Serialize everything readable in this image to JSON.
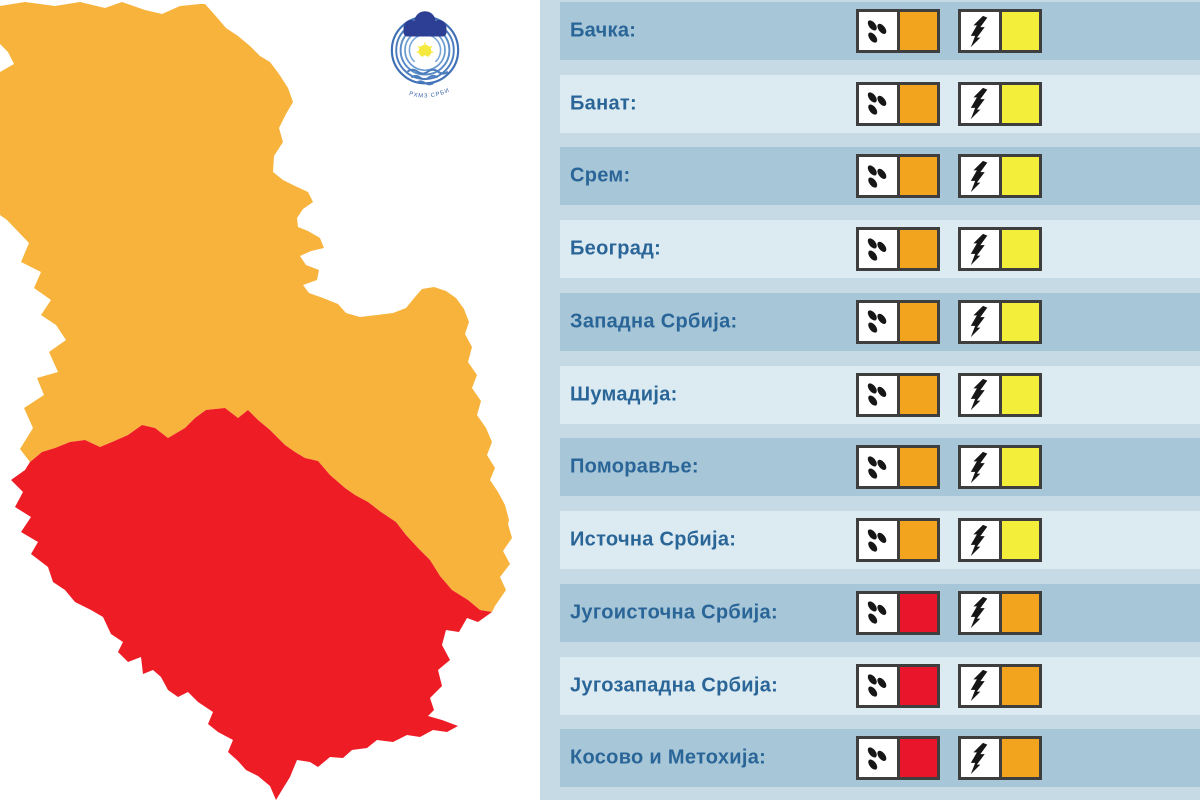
{
  "map": {
    "title": "Serbia warning map",
    "colors": {
      "north_region": "#f8b33c",
      "south_region": "#ee1c25"
    },
    "logo": {
      "text": "РХМЗ СРБИЈЕ",
      "colors": {
        "navy": "#2c3f94",
        "arc_blue": "#4c7ebe",
        "sun_yellow": "#f5e93d",
        "text_blue": "#3b63a8"
      }
    }
  },
  "panel": {
    "background": "#c5dae5",
    "row_dark": "#a7c6d7",
    "row_light": "#dcebf2",
    "label_color": "#2a6598",
    "severity_colors": {
      "yellow": "#f2ee39",
      "orange": "#f2a41f",
      "red": "#e9152b"
    },
    "rows": [
      {
        "label": "Бачка:",
        "warnings": [
          {
            "type": "rain",
            "level": "orange"
          },
          {
            "type": "thunderstorm",
            "level": "yellow"
          }
        ]
      },
      {
        "label": "Банат:",
        "warnings": [
          {
            "type": "rain",
            "level": "orange"
          },
          {
            "type": "thunderstorm",
            "level": "yellow"
          }
        ]
      },
      {
        "label": "Срем:",
        "warnings": [
          {
            "type": "rain",
            "level": "orange"
          },
          {
            "type": "thunderstorm",
            "level": "yellow"
          }
        ]
      },
      {
        "label": "Београд:",
        "warnings": [
          {
            "type": "rain",
            "level": "orange"
          },
          {
            "type": "thunderstorm",
            "level": "yellow"
          }
        ]
      },
      {
        "label": "Западна Србија:",
        "warnings": [
          {
            "type": "rain",
            "level": "orange"
          },
          {
            "type": "thunderstorm",
            "level": "yellow"
          }
        ]
      },
      {
        "label": "Шумадија:",
        "warnings": [
          {
            "type": "rain",
            "level": "orange"
          },
          {
            "type": "thunderstorm",
            "level": "yellow"
          }
        ]
      },
      {
        "label": "Поморавље:",
        "warnings": [
          {
            "type": "rain",
            "level": "orange"
          },
          {
            "type": "thunderstorm",
            "level": "yellow"
          }
        ]
      },
      {
        "label": "Источна Србија:",
        "warnings": [
          {
            "type": "rain",
            "level": "orange"
          },
          {
            "type": "thunderstorm",
            "level": "yellow"
          }
        ]
      },
      {
        "label": "Југоисточна Србија:",
        "warnings": [
          {
            "type": "rain",
            "level": "red"
          },
          {
            "type": "thunderstorm",
            "level": "orange"
          }
        ]
      },
      {
        "label": "Југозападна Србија:",
        "warnings": [
          {
            "type": "rain",
            "level": "red"
          },
          {
            "type": "thunderstorm",
            "level": "orange"
          }
        ]
      },
      {
        "label": "Косово и Метохија:",
        "warnings": [
          {
            "type": "rain",
            "level": "red"
          },
          {
            "type": "thunderstorm",
            "level": "orange"
          }
        ]
      }
    ]
  }
}
